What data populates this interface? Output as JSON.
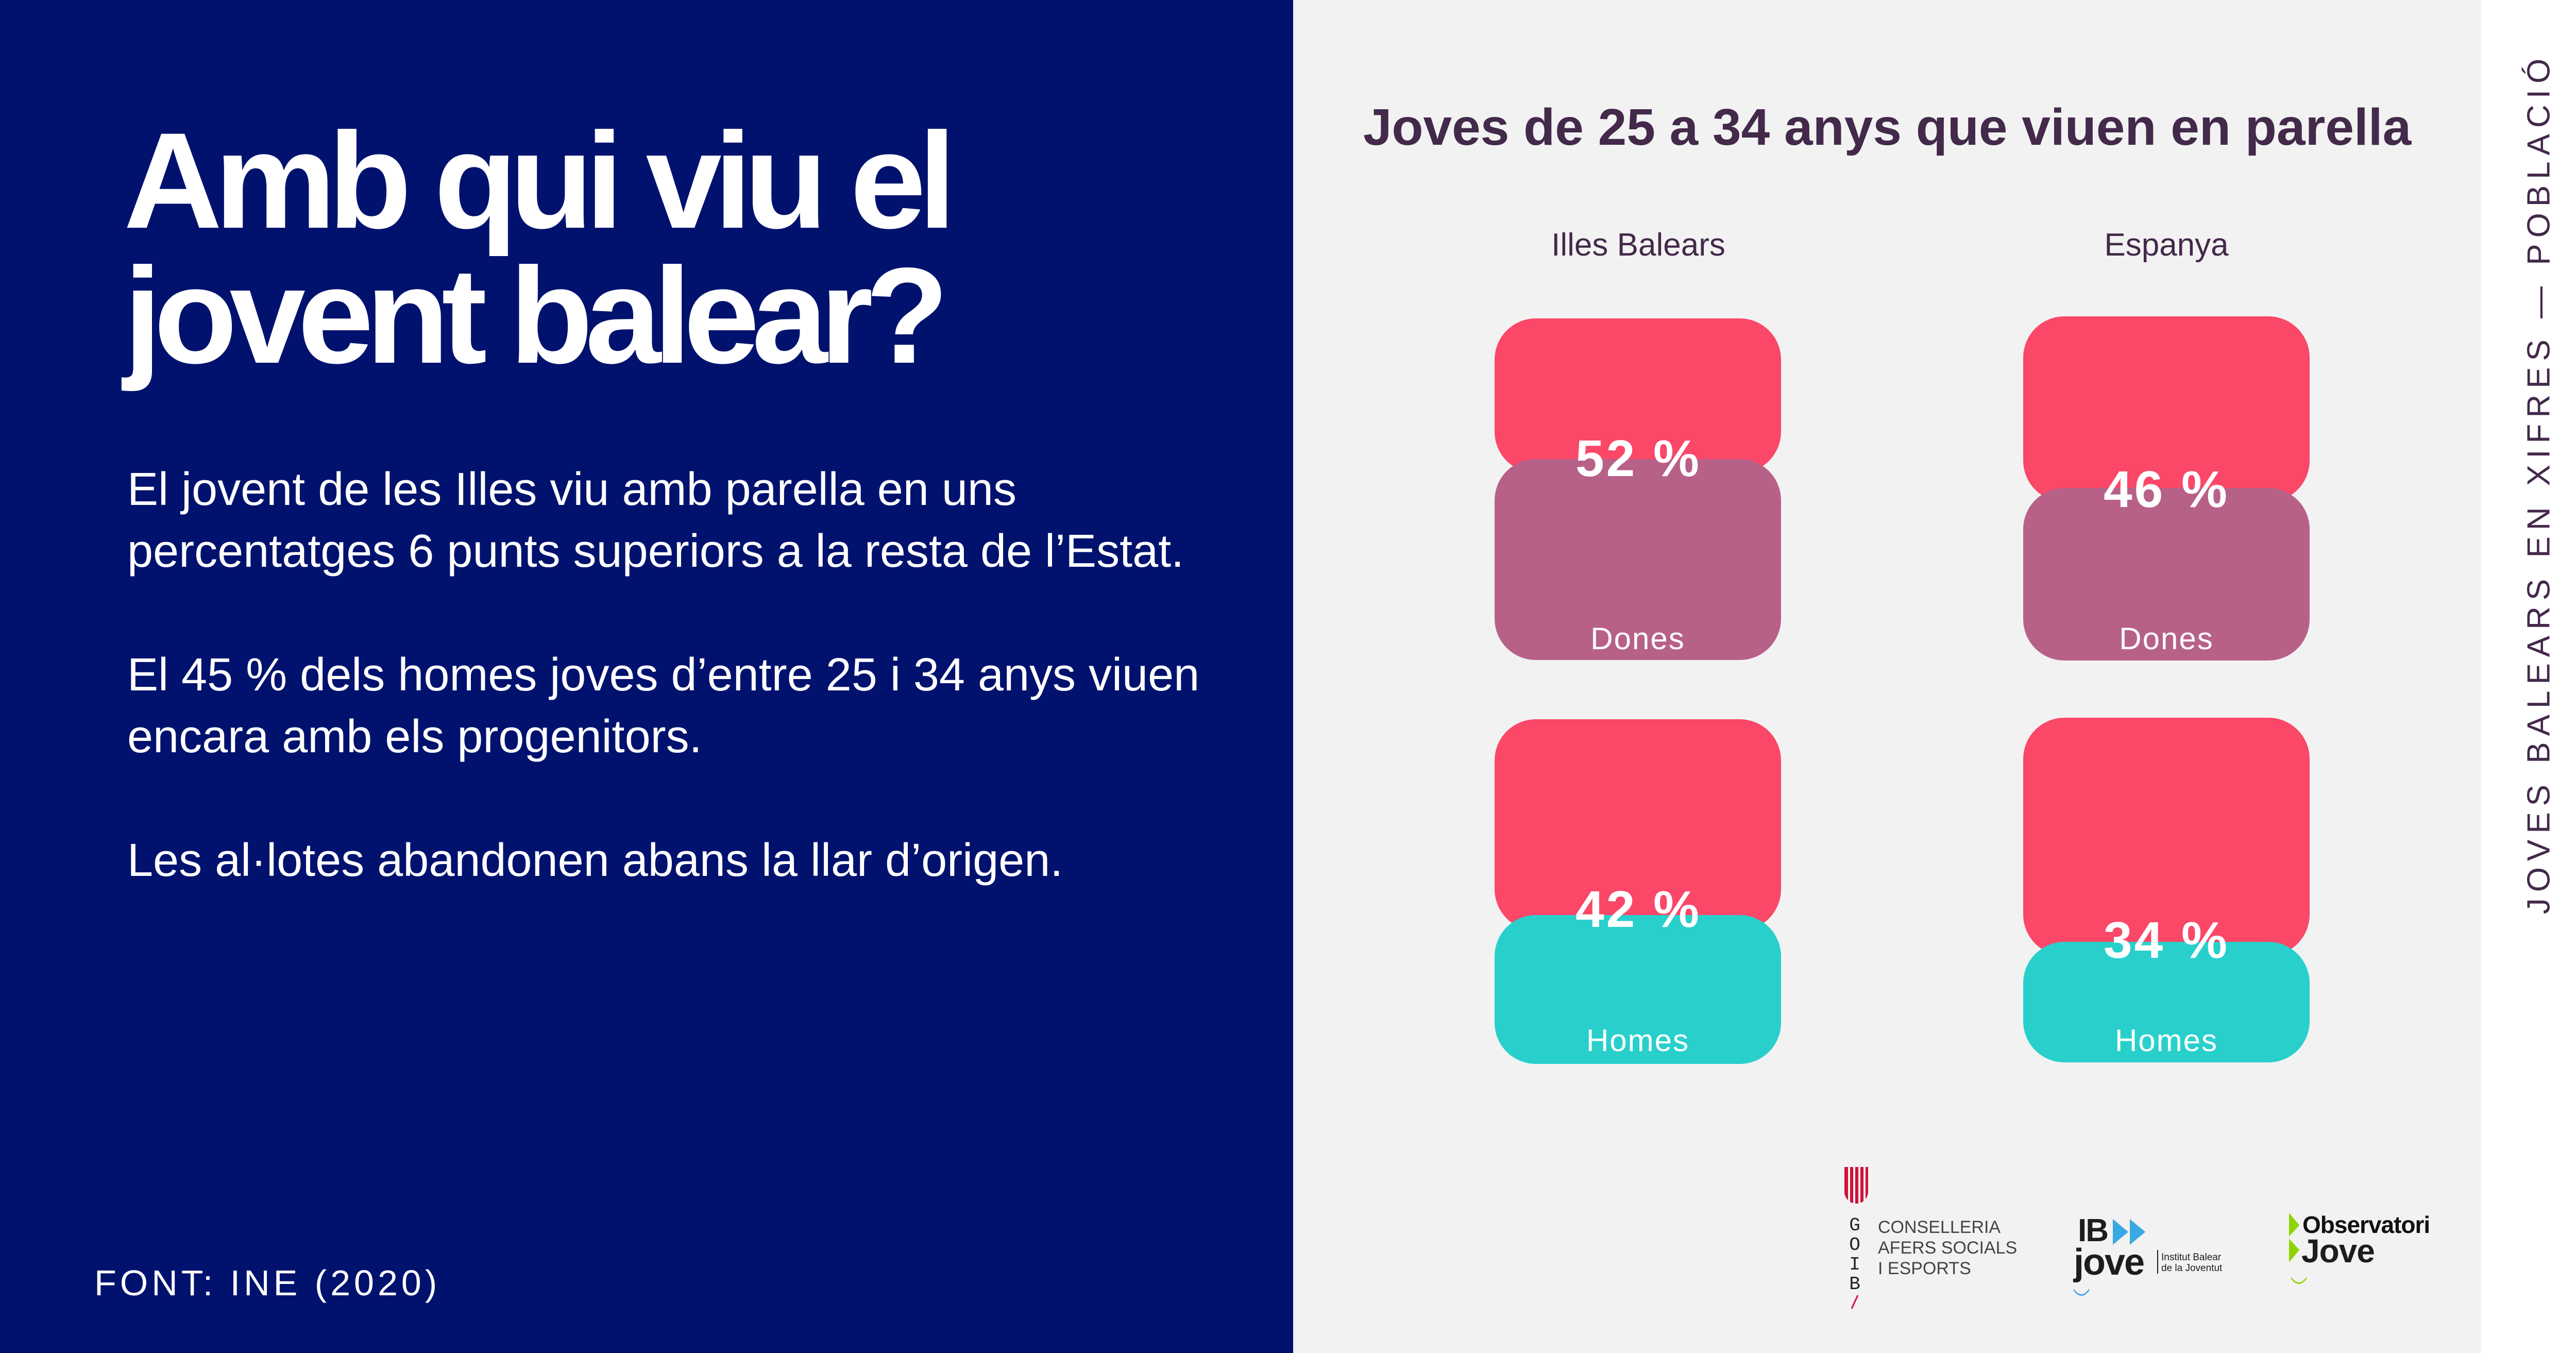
{
  "left_panel": {
    "headline_line1": "Amb qui viu el",
    "headline_line2": "jovent balear?",
    "paragraphs": [
      "El jovent de les Illes viu amb parella en uns percentatges 6 punts superiors a la resta de l’Estat.",
      "El 45 % dels homes joves d’entre 25 i 34 anys viuen encara amb els progenitors.",
      "Les al·lotes abandonen abans la llar d’origen."
    ],
    "source": "FONT: INE (2020)",
    "background_color": "#00126e"
  },
  "side_label": "JOVES BALEARS EN XIFRES — POBLACIÓ",
  "chart_data": {
    "type": "bar",
    "title": "Joves de 25 a 34 anys que viuen en parella",
    "categories": [
      "Illes Balears",
      "Espanya"
    ],
    "series": [
      {
        "name": "Dones",
        "values": [
          52,
          46
        ],
        "labels": [
          "52 %",
          "46 %"
        ],
        "color": "#b76189"
      },
      {
        "name": "Homes",
        "values": [
          42,
          34
        ],
        "labels": [
          "42 %",
          "34 %"
        ],
        "color": "#29d0cb"
      }
    ],
    "remainder_color": "#fb4768",
    "unit": "%"
  },
  "logos": {
    "goib": {
      "letters": [
        "G",
        "O",
        "I",
        "B"
      ],
      "lines": [
        "CONSELLERIA",
        "AFERS SOCIALS",
        "I ESPORTS"
      ]
    },
    "ibjove": {
      "main": "IB",
      "sub": "jove",
      "caption_lines": [
        "Institut Balear",
        "de la Joventut"
      ]
    },
    "observatori": {
      "line1": "Observatori",
      "line2": "Jove"
    }
  }
}
